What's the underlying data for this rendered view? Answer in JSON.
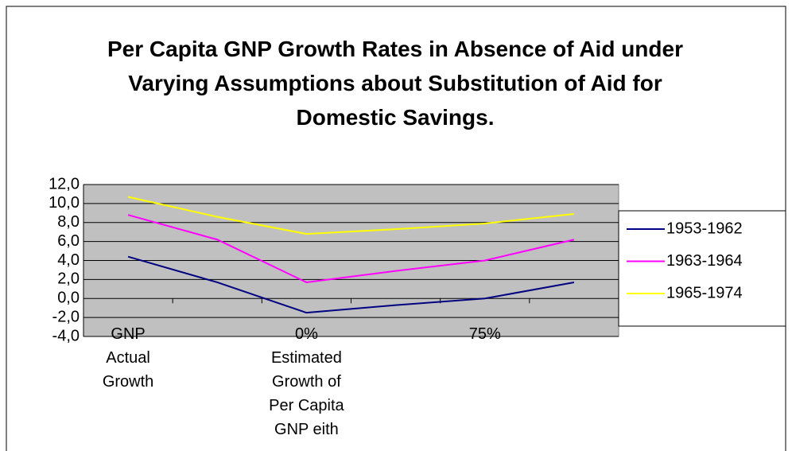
{
  "chart_data": {
    "type": "line",
    "title": "Per Capita GNP Growth Rates in Absence of Aid under Varying Assumptions about Substitution of Aid for Domestic Savings.",
    "categories": [
      "GNP Actual Growth",
      null,
      "0% Estimated Growth of Per Capita GNP eith",
      null,
      "75%",
      null
    ],
    "series": [
      {
        "name": "1953-1962",
        "color": "#000080",
        "values": [
          4.4,
          1.7,
          -1.5,
          -0.7,
          0.0,
          1.7
        ]
      },
      {
        "name": "1963-1964",
        "color": "#ff00ff",
        "values": [
          8.8,
          6.2,
          1.7,
          2.9,
          4.0,
          6.2
        ]
      },
      {
        "name": "1965-1974",
        "color": "#ffff00",
        "values": [
          10.7,
          8.6,
          6.8,
          7.3,
          7.9,
          8.9
        ]
      }
    ],
    "ylim": [
      -4,
      12
    ],
    "yticks": [
      {
        "value": -4,
        "label": "-4,0"
      },
      {
        "value": -2,
        "label": "-2,0"
      },
      {
        "value": 0,
        "label": "0,0"
      },
      {
        "value": 2,
        "label": "2,0"
      },
      {
        "value": 4,
        "label": "4,0"
      },
      {
        "value": 6,
        "label": "6,0"
      },
      {
        "value": 8,
        "label": "8,0"
      },
      {
        "value": 10,
        "label": "10,0"
      },
      {
        "value": 12,
        "label": "12,0"
      }
    ],
    "grid": true,
    "legend": "right"
  }
}
